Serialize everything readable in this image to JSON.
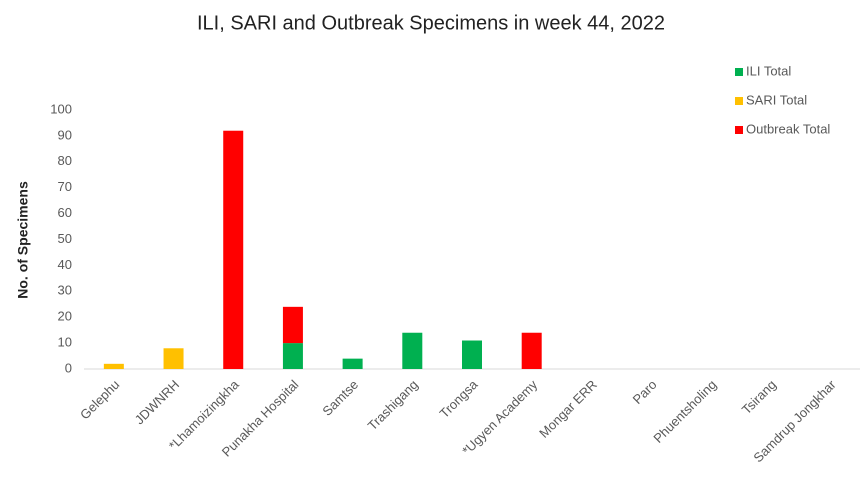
{
  "chart_data": {
    "type": "stacked_bar",
    "title": "ILI, SARI and Outbreak Specimens in week 44, 2022",
    "y_label": "No. of Specimens",
    "categories": [
      "Gelephu",
      "JDWNRH",
      "*Lhamoizingkha",
      "Punakha Hospital",
      "Samtse",
      "Trashigang",
      "Trongsa",
      "*Ugyen Academy",
      "Mongar ERR",
      "Paro",
      "Phuentsholing",
      "Tsirang",
      "Samdrup Jongkhar"
    ],
    "series": [
      {
        "name": "ILI Total",
        "color": "#00b050",
        "values": [
          0,
          0,
          0,
          10,
          4,
          14,
          11,
          0,
          0,
          0,
          0,
          0,
          0
        ]
      },
      {
        "name": "SARI Total",
        "color": "#ffc000",
        "values": [
          2,
          8,
          0,
          0,
          0,
          0,
          0,
          0,
          0,
          0,
          0,
          0,
          0
        ]
      },
      {
        "name": "Outbreak Total",
        "color": "#ff0000",
        "values": [
          0,
          0,
          92,
          14,
          0,
          0,
          0,
          14,
          0,
          0,
          0,
          0,
          0
        ]
      }
    ],
    "ylim": [
      0,
      100
    ],
    "yticks": [
      0,
      10,
      20,
      30,
      40,
      50,
      60,
      70,
      80,
      90,
      100
    ],
    "grid": false,
    "legend": "top-right"
  }
}
